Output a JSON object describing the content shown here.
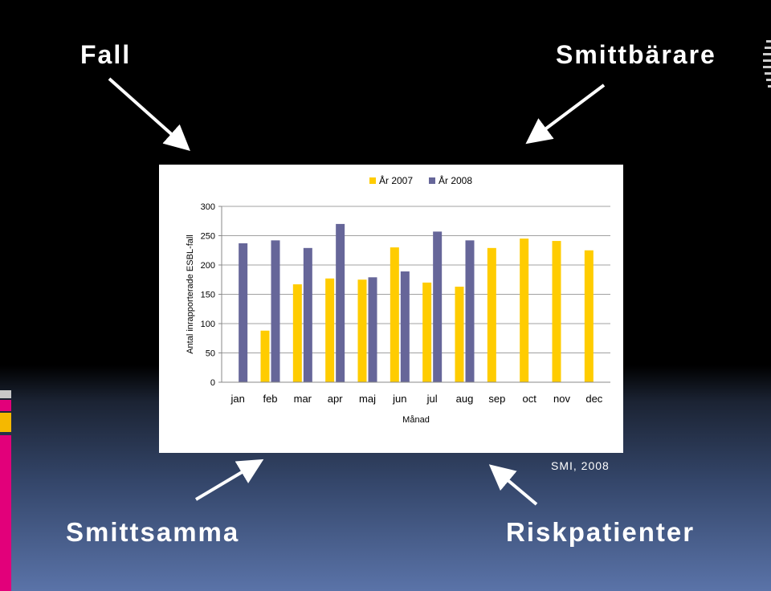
{
  "slide": {
    "title_top_left": "Fall",
    "title_top_right": "Smittbärare",
    "title_bottom_left": "Smittsamma",
    "title_bottom_right": "Riskpatienter",
    "source": "SMI, 2008"
  },
  "colors": {
    "series_2007": "#ffcc00",
    "series_2008": "#666699",
    "arrow": "#ffffff"
  },
  "chart_data": {
    "type": "bar",
    "title": "",
    "xlabel": "Månad",
    "ylabel": "Antal inrapporterade ESBL-fall",
    "ylim": [
      0,
      300
    ],
    "yticks": [
      0,
      50,
      100,
      150,
      200,
      250,
      300
    ],
    "grid": true,
    "legend_position": "top",
    "categories": [
      "jan",
      "feb",
      "mar",
      "apr",
      "maj",
      "jun",
      "jul",
      "aug",
      "sep",
      "oct",
      "nov",
      "dec"
    ],
    "series": [
      {
        "name": "År 2007",
        "values": [
          null,
          88,
          167,
          177,
          175,
          230,
          170,
          163,
          229,
          245,
          241,
          225
        ]
      },
      {
        "name": "År 2008",
        "values": [
          237,
          242,
          229,
          270,
          179,
          189,
          257,
          242,
          null,
          null,
          null,
          null
        ]
      }
    ]
  }
}
